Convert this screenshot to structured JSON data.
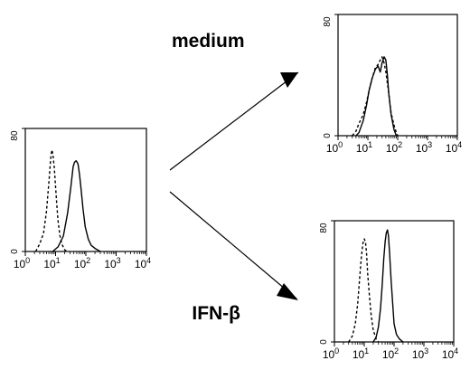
{
  "labels": {
    "top_condition": "medium",
    "bottom_condition": "IFN-β"
  },
  "chart_data": [
    {
      "type": "line",
      "panel": "left",
      "xscale": "log",
      "xlim": [
        1,
        10000
      ],
      "ylim": [
        0,
        80
      ],
      "x_ticks": [
        "10^0",
        "10^1",
        "10^2",
        "10^3",
        "10^4"
      ],
      "y_ticks": [
        "0",
        "80"
      ],
      "series": [
        {
          "style": "dashed",
          "x": [
            2.2,
            3,
            4,
            5,
            6,
            7,
            7.5,
            8,
            9,
            10,
            11,
            12,
            14,
            16,
            20,
            25
          ],
          "y": [
            0,
            5,
            12,
            26,
            45,
            62,
            66,
            64,
            55,
            42,
            30,
            20,
            10,
            5,
            1,
            0
          ]
        },
        {
          "style": "solid",
          "x": [
            8,
            12,
            18,
            25,
            32,
            38,
            42,
            48,
            55,
            62,
            70,
            80,
            95,
            120,
            150,
            200,
            300
          ],
          "y": [
            0,
            3,
            10,
            25,
            42,
            55,
            58,
            59,
            57,
            50,
            40,
            28,
            16,
            8,
            4,
            2,
            0
          ]
        }
      ]
    },
    {
      "type": "line",
      "panel": "top-right",
      "xscale": "log",
      "xlim": [
        1,
        10000
      ],
      "ylim": [
        0,
        80
      ],
      "x_ticks": [
        "10^0",
        "10^1",
        "10^2",
        "10^3",
        "10^4"
      ],
      "y_ticks": [
        "0",
        "80"
      ],
      "series": [
        {
          "style": "dashed",
          "x": [
            3,
            4,
            5,
            7,
            9,
            11,
            14,
            18,
            22,
            26,
            30,
            35,
            40,
            50,
            60,
            80,
            100
          ],
          "y": [
            0,
            3,
            8,
            14,
            22,
            30,
            38,
            45,
            47,
            50,
            52,
            48,
            42,
            28,
            15,
            5,
            0
          ]
        },
        {
          "style": "solid",
          "x": [
            4,
            5,
            7,
            9,
            11,
            14,
            18,
            22,
            26,
            30,
            35,
            40,
            45,
            50,
            60,
            75,
            90
          ],
          "y": [
            0,
            2,
            10,
            20,
            30,
            38,
            44,
            46,
            42,
            48,
            52,
            50,
            40,
            28,
            14,
            4,
            0
          ]
        }
      ]
    },
    {
      "type": "line",
      "panel": "bottom-right",
      "xscale": "log",
      "xlim": [
        1,
        10000
      ],
      "ylim": [
        0,
        80
      ],
      "x_ticks": [
        "10^0",
        "10^1",
        "10^2",
        "10^3",
        "10^4"
      ],
      "y_ticks": [
        "0",
        "80"
      ],
      "series": [
        {
          "style": "dashed",
          "x": [
            3,
            4,
            5,
            6,
            7,
            8,
            9,
            10,
            11,
            12,
            13,
            15,
            17,
            20,
            25,
            30
          ],
          "y": [
            0,
            4,
            12,
            25,
            42,
            56,
            65,
            68,
            66,
            58,
            45,
            30,
            18,
            8,
            2,
            0
          ]
        },
        {
          "style": "solid",
          "x": [
            20,
            25,
            30,
            35,
            40,
            45,
            50,
            55,
            60,
            65,
            70,
            80,
            90,
            100,
            120,
            150,
            200
          ],
          "y": [
            0,
            3,
            10,
            22,
            38,
            55,
            66,
            72,
            74,
            70,
            60,
            40,
            25,
            12,
            5,
            2,
            0
          ]
        }
      ]
    }
  ]
}
